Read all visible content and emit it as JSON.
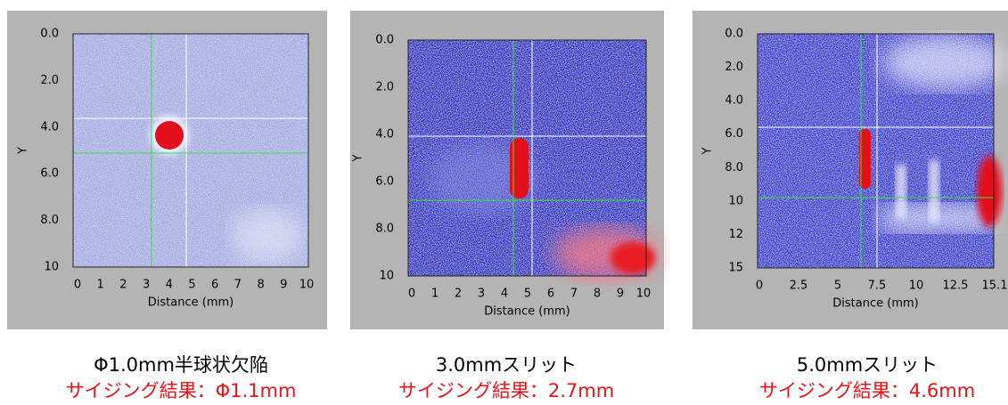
{
  "panels": [
    {
      "ylabel": "Y",
      "xlabel": "Distance (mm)",
      "yticks": [
        "0.0",
        "2.0",
        "4.0",
        "6.0",
        "8.0",
        "10"
      ],
      "xticks": [
        "0",
        "1",
        "2",
        "3",
        "4",
        "5",
        "6",
        "7",
        "8",
        "9",
        "10"
      ],
      "caption": "Φ1.0mm半球状欠陥",
      "result": "サイジング結果：Φ1.1mm"
    },
    {
      "ylabel": "Y",
      "xlabel": "Distance (mm)",
      "yticks": [
        "0.0",
        "2.0",
        "4.0",
        "6.0",
        "8.0",
        "10"
      ],
      "xticks": [
        "0",
        "1",
        "2",
        "3",
        "4",
        "5",
        "6",
        "7",
        "8",
        "9",
        "10"
      ],
      "caption": "3.0mmスリット",
      "result": "サイジング結果：2.7mm"
    },
    {
      "ylabel": "Y",
      "xlabel": "Distance (mm)",
      "yticks": [
        "0.0",
        "2.0",
        "4.0",
        "6.0",
        "8.0",
        "10",
        "12",
        "15"
      ],
      "xticks": [
        "0",
        "2.5",
        "5",
        "7.5",
        "10",
        "12.5",
        "15.1"
      ],
      "caption": "5.0mmスリット",
      "result": "サイジング結果：4.6mm"
    }
  ]
}
